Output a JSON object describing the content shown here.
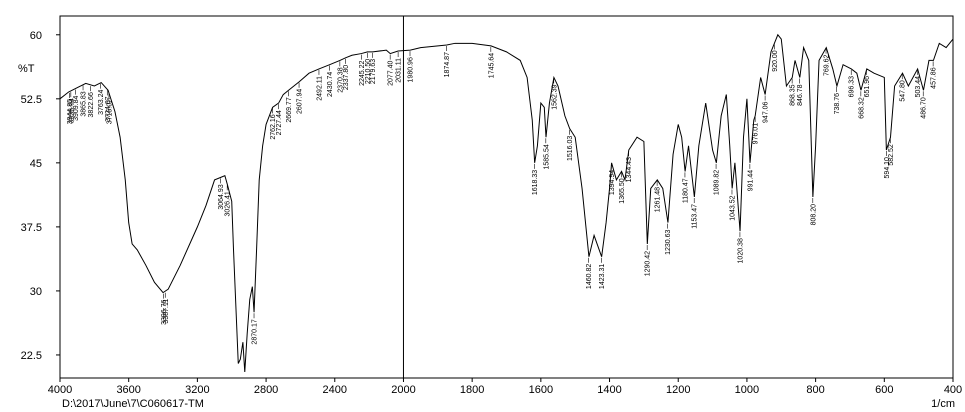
{
  "chart_data": {
    "type": "line",
    "y_label": "%T",
    "x_label": "1/cm",
    "file_path": "D:\\2017\\June\\7\\C060617-TM",
    "xlim": [
      4000,
      400
    ],
    "ylim": [
      19.8,
      62.2
    ],
    "xticks": [
      4000,
      3600,
      3200,
      2800,
      2400,
      2000,
      1800,
      1600,
      1400,
      1200,
      1000,
      800,
      600,
      400
    ],
    "yticks": [
      {
        "value": 22.5,
        "label": "22.5"
      },
      {
        "value": 30,
        "label": "30"
      },
      {
        "value": 37.5,
        "label": "37.5"
      },
      {
        "value": 45,
        "label": "45"
      },
      {
        "value": 52.5,
        "label": "52.5"
      },
      {
        "value": 60,
        "label": "60"
      }
    ],
    "color": "#000000",
    "x": [
      4000,
      3950,
      3900,
      3850,
      3800,
      3760,
      3720,
      3680,
      3650,
      3620,
      3600,
      3580,
      3550,
      3500,
      3450,
      3400,
      3370,
      3300,
      3200,
      3150,
      3100,
      3064,
      3040,
      3026,
      3000,
      2990,
      2962,
      2950,
      2935,
      2924,
      2910,
      2895,
      2880,
      2870,
      2855,
      2840,
      2820,
      2800,
      2762,
      2727,
      2700,
      2669,
      2607,
      2550,
      2492,
      2430,
      2370,
      2337,
      2300,
      2245,
      2210,
      2179,
      2100,
      2077,
      2031,
      1980,
      1950,
      1874,
      1850,
      1800,
      1745,
      1700,
      1660,
      1640,
      1625,
      1618,
      1610,
      1600,
      1590,
      1585,
      1575,
      1562,
      1550,
      1530,
      1516,
      1500,
      1480,
      1460,
      1445,
      1423,
      1410,
      1400,
      1394,
      1380,
      1365,
      1355,
      1344,
      1320,
      1300,
      1290,
      1280,
      1261,
      1245,
      1230,
      1215,
      1200,
      1190,
      1180,
      1170,
      1153,
      1140,
      1120,
      1100,
      1089,
      1075,
      1060,
      1050,
      1043,
      1035,
      1020,
      1010,
      1000,
      991,
      980,
      976,
      960,
      947,
      930,
      910,
      900,
      885,
      868,
      860,
      846,
      835,
      820,
      808,
      800,
      790,
      769,
      750,
      738,
      720,
      696,
      680,
      668,
      651,
      630,
      600,
      594,
      582,
      570,
      547,
      530,
      503,
      486,
      470,
      457,
      440,
      420,
      400
    ],
    "values": [
      52.5,
      53.3,
      53.8,
      54.3,
      54,
      54.4,
      53.5,
      51,
      48,
      43,
      38,
      35.5,
      34.8,
      33,
      31,
      29.8,
      30.2,
      33,
      37.5,
      40,
      43,
      43.3,
      43.5,
      42.5,
      40.5,
      35,
      21.5,
      22,
      24,
      20.5,
      25,
      29,
      30.5,
      27.5,
      35,
      43,
      47,
      49.5,
      51.5,
      52,
      53,
      53.5,
      54.5,
      55.5,
      56,
      56.5,
      57,
      57.3,
      57.6,
      57.8,
      58,
      58,
      58.2,
      57.8,
      58.1,
      58.2,
      58.5,
      58.8,
      59,
      59,
      58.7,
      58,
      57,
      55,
      50,
      45,
      47,
      52,
      51.5,
      48,
      52,
      55,
      54,
      50.5,
      49,
      48,
      42,
      34,
      36.5,
      34,
      38,
      42,
      45,
      43,
      44,
      43,
      46.5,
      48,
      47.5,
      35.5,
      42,
      43,
      42,
      38,
      46,
      49.5,
      48,
      44,
      47,
      41,
      47,
      52,
      46.5,
      45,
      50.5,
      53,
      47,
      42,
      45,
      37,
      48,
      52.5,
      45,
      50,
      50.5,
      55,
      53,
      58,
      60,
      59.5,
      54,
      55,
      57,
      55,
      58.5,
      57,
      41,
      47,
      57,
      58.5,
      56,
      54,
      56.5,
      56,
      55.5,
      53.5,
      56,
      55.5,
      55,
      46.5,
      48,
      54,
      55.5,
      54,
      56,
      53.5,
      57,
      57,
      59,
      58.5,
      59.5
    ],
    "peaks": [
      {
        "x": 3944.85,
        "y": 53.3,
        "label": "3944.85"
      },
      {
        "x": 3936.94,
        "y": 53.4,
        "label": "3936.94"
      },
      {
        "x": 3909.84,
        "y": 53.7,
        "label": "3909.84"
      },
      {
        "x": 3865.83,
        "y": 54.2,
        "label": "3865.83"
      },
      {
        "x": 3822.66,
        "y": 54.1,
        "label": "3822.66"
      },
      {
        "x": 3763.24,
        "y": 54.4,
        "label": "3763.24"
      },
      {
        "x": 3724.67,
        "y": 53.6,
        "label": "3724.67"
      },
      {
        "x": 3715.02,
        "y": 53.3,
        "label": "3715.02"
      },
      {
        "x": 3396.76,
        "y": 29.8,
        "label": "3396.76"
      },
      {
        "x": 3387.11,
        "y": 29.9,
        "label": "3387.11"
      },
      {
        "x": 3064.93,
        "y": 43.3,
        "label": "3064.93"
      },
      {
        "x": 3026.41,
        "y": 42.5,
        "label": "3026.41"
      },
      {
        "x": 2870.17,
        "y": 27.5,
        "label": "2870.17"
      },
      {
        "x": 2762.16,
        "y": 51.5,
        "label": "2762.16"
      },
      {
        "x": 2727.44,
        "y": 52,
        "label": "2727.44"
      },
      {
        "x": 2669.77,
        "y": 53.5,
        "label": "2669.77"
      },
      {
        "x": 2607.94,
        "y": 54.5,
        "label": "2607.94"
      },
      {
        "x": 2492.11,
        "y": 56,
        "label": "2492.11"
      },
      {
        "x": 2430.74,
        "y": 56.5,
        "label": "2430.74"
      },
      {
        "x": 2370.38,
        "y": 57,
        "label": "2370.38"
      },
      {
        "x": 2337.8,
        "y": 57.3,
        "label": "2337.80"
      },
      {
        "x": 2245.22,
        "y": 57.8,
        "label": "2245.22"
      },
      {
        "x": 2210.5,
        "y": 58,
        "label": "2210.50"
      },
      {
        "x": 2179.63,
        "y": 58,
        "label": "2179.63"
      },
      {
        "x": 2077.4,
        "y": 57.8,
        "label": "2077.40"
      },
      {
        "x": 2031.11,
        "y": 58.1,
        "label": "2031.11"
      },
      {
        "x": 1980.96,
        "y": 58.2,
        "label": "1980.96"
      },
      {
        "x": 1874.87,
        "y": 58.8,
        "label": "1874.87"
      },
      {
        "x": 1745.64,
        "y": 58.7,
        "label": "1745.64"
      },
      {
        "x": 1618.33,
        "y": 45,
        "label": "1618.33"
      },
      {
        "x": 1585.54,
        "y": 48,
        "label": "1585.54"
      },
      {
        "x": 1562.39,
        "y": 55,
        "label": "1562.39"
      },
      {
        "x": 1516.03,
        "y": 49,
        "label": "1516.03"
      },
      {
        "x": 1460.82,
        "y": 34,
        "label": "1460.82"
      },
      {
        "x": 1423.31,
        "y": 34,
        "label": "1423.31"
      },
      {
        "x": 1394.94,
        "y": 45,
        "label": "1394.94"
      },
      {
        "x": 1365.5,
        "y": 44,
        "label": "1365.50"
      },
      {
        "x": 1344.43,
        "y": 46.5,
        "label": "1344.43"
      },
      {
        "x": 1290.42,
        "y": 35.5,
        "label": "1290.42"
      },
      {
        "x": 1261.48,
        "y": 43,
        "label": "1261.48"
      },
      {
        "x": 1230.63,
        "y": 38,
        "label": "1230.63"
      },
      {
        "x": 1180.47,
        "y": 44,
        "label": "1180.47"
      },
      {
        "x": 1153.47,
        "y": 41,
        "label": "1153.47"
      },
      {
        "x": 1089.82,
        "y": 45,
        "label": "1089.82"
      },
      {
        "x": 1043.52,
        "y": 42,
        "label": "1043.52"
      },
      {
        "x": 1020.38,
        "y": 37,
        "label": "1020.38"
      },
      {
        "x": 991.44,
        "y": 45,
        "label": "991.44"
      },
      {
        "x": 976.01,
        "y": 50.5,
        "label": "976.01"
      },
      {
        "x": 947.06,
        "y": 53,
        "label": "947.06"
      },
      {
        "x": 920.0,
        "y": 59,
        "label": "920.00"
      },
      {
        "x": 868.35,
        "y": 55,
        "label": "868.35"
      },
      {
        "x": 846.78,
        "y": 55,
        "label": "846.78"
      },
      {
        "x": 808.2,
        "y": 41,
        "label": "808.20"
      },
      {
        "x": 769.62,
        "y": 58.5,
        "label": "769.62"
      },
      {
        "x": 738.76,
        "y": 54,
        "label": "738.76"
      },
      {
        "x": 696.33,
        "y": 56,
        "label": "696.33"
      },
      {
        "x": 668.32,
        "y": 53.5,
        "label": "668.32"
      },
      {
        "x": 651.96,
        "y": 56,
        "label": "651.96"
      },
      {
        "x": 594.1,
        "y": 46.5,
        "label": "594.10"
      },
      {
        "x": 582.52,
        "y": 48,
        "label": "582.52"
      },
      {
        "x": 547.8,
        "y": 55.5,
        "label": "547.80"
      },
      {
        "x": 503.44,
        "y": 56,
        "label": "503.44"
      },
      {
        "x": 486.7,
        "y": 53.5,
        "label": "486.70"
      },
      {
        "x": 457.86,
        "y": 57,
        "label": "457.86"
      }
    ]
  }
}
